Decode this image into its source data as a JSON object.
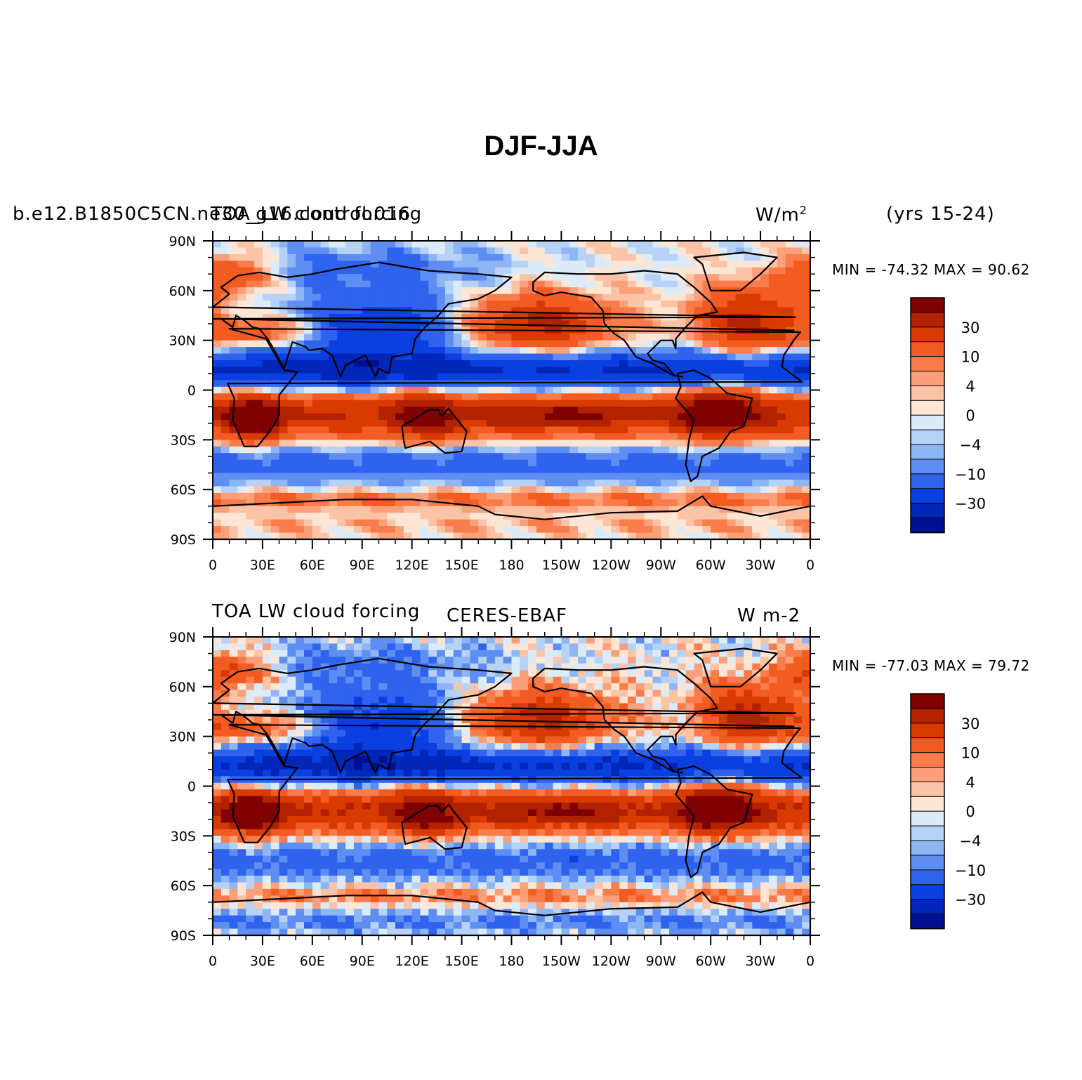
{
  "figure": {
    "title": "DJF-JJA"
  },
  "panels": [
    {
      "left_label": "b.e12.B1850C5CN.ne30_g16.control.016",
      "center_label": "TOA_LW cloud forcing",
      "units": "W/m",
      "units_sup": "2",
      "period": "(yrs 15-24)",
      "min_max": "MIN = -74.32  MAX =  90.62"
    },
    {
      "left_label": "TOA LW cloud forcing",
      "center_label": "CERES-EBAF",
      "units": "W m-2",
      "units_sup": "",
      "period": "",
      "min_max": "MIN = -77.03  MAX =  79.72"
    }
  ],
  "axes": {
    "lat_ticks": [
      "90N",
      "60N",
      "30N",
      "0",
      "30S",
      "60S",
      "90S"
    ],
    "lon_ticks": [
      "0",
      "30E",
      "60E",
      "90E",
      "120E",
      "150E",
      "180",
      "150W",
      "120W",
      "90W",
      "60W",
      "30W",
      "0"
    ]
  },
  "colorbar": {
    "labels": [
      "30",
      "10",
      "4",
      "0",
      "-4",
      "-10",
      "-30"
    ],
    "colors": [
      "#7f0000",
      "#b22200",
      "#d83a00",
      "#f25b22",
      "#f97c4a",
      "#fba07a",
      "#fcc4a6",
      "#fde6d6",
      "#dcebf8",
      "#b6d2f6",
      "#8fb6f4",
      "#5e8ef2",
      "#2f63ee",
      "#0a3fe0",
      "#0027b8",
      "#000f90"
    ]
  },
  "chart_data": {
    "type": "heatmap",
    "title": "DJF-JJA",
    "variable": "TOA LW cloud forcing",
    "units": "W/m2",
    "contour_levels": [
      -40,
      -30,
      -20,
      -10,
      -6,
      -4,
      -2,
      0,
      2,
      4,
      6,
      10,
      20,
      30,
      40
    ],
    "colorbar_labels": [
      30,
      10,
      4,
      0,
      -4,
      -10,
      -30
    ],
    "maps": [
      {
        "name": "b.e12.B1850C5CN.ne30_g16.control.016",
        "min": -74.32,
        "max": 90.62
      },
      {
        "name": "CERES-EBAF",
        "min": -77.03,
        "max": 79.72
      }
    ]
  }
}
